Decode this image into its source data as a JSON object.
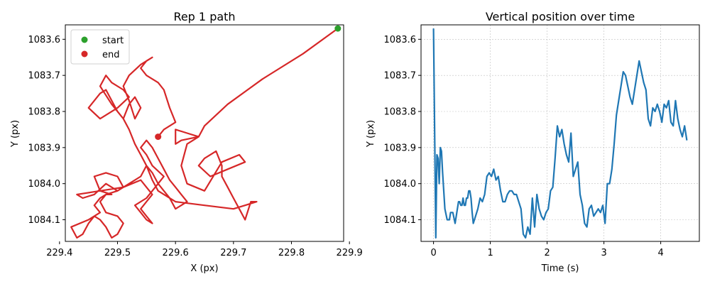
{
  "chart_data": [
    {
      "type": "line",
      "title": "Rep 1 path",
      "xlabel": "X (px)",
      "ylabel": "Y (px)",
      "xlim": [
        229.41,
        229.89
      ],
      "ylim": [
        1083.56,
        1084.16
      ],
      "y_inverted": true,
      "xticks": [
        "229.4",
        "229.5",
        "229.6",
        "229.7",
        "229.8",
        "229.9"
      ],
      "yticks": [
        "1083.6",
        "1083.7",
        "1083.8",
        "1083.9",
        "1084.0",
        "1084.1"
      ],
      "grid": false,
      "legend": {
        "position": "top-left",
        "entries": [
          "start",
          "end"
        ]
      },
      "colors": {
        "path": "#d62728",
        "start": "#2ca02c",
        "end": "#d62728"
      },
      "series": [
        {
          "x": [
            229.88,
            229.82,
            229.75,
            229.69,
            229.65,
            229.64,
            229.61,
            229.6,
            229.6,
            229.62,
            229.64,
            229.63,
            229.62,
            229.61,
            229.62,
            229.65,
            229.68,
            229.71,
            229.72,
            229.69,
            229.66,
            229.64,
            229.65,
            229.67,
            229.68,
            229.68,
            229.69,
            229.7,
            229.71,
            229.72,
            229.73,
            229.74,
            229.72,
            229.7,
            229.65,
            229.6,
            229.57,
            229.56,
            229.55,
            229.54,
            229.52,
            229.5,
            229.48,
            229.47,
            229.48,
            229.5,
            229.51,
            229.5,
            229.49,
            229.48,
            229.47,
            229.46,
            229.45,
            229.44,
            229.43,
            229.42,
            229.45,
            229.47,
            229.46,
            229.47,
            229.48,
            229.49,
            229.47,
            229.46,
            229.48,
            229.5,
            229.51,
            229.5,
            229.49,
            229.48,
            229.46,
            229.44,
            229.43,
            229.47,
            229.51,
            229.54,
            229.55,
            229.56,
            229.55,
            229.54,
            229.55,
            229.56,
            229.55,
            229.54,
            229.53,
            229.55,
            229.56,
            229.57,
            229.58,
            229.56,
            229.55,
            229.54,
            229.55,
            229.56,
            229.57,
            229.58,
            229.59,
            229.6,
            229.61,
            229.62,
            229.61,
            229.6,
            229.59,
            229.58,
            229.57,
            229.56,
            229.55,
            229.54,
            229.53,
            229.52,
            229.51,
            229.5,
            229.49,
            229.48,
            229.47,
            229.45,
            229.47,
            229.5,
            229.52,
            229.51,
            229.49,
            229.48,
            229.47,
            229.49,
            229.51,
            229.52,
            229.53,
            229.54,
            229.53,
            229.52,
            229.51,
            229.52,
            229.54,
            229.56,
            229.55,
            229.54,
            229.55,
            229.57,
            229.58,
            229.59,
            229.6,
            229.58,
            229.57
          ],
          "y": [
            1083.57,
            1083.64,
            1083.71,
            1083.78,
            1083.84,
            1083.87,
            1083.88,
            1083.89,
            1083.85,
            1083.86,
            1083.87,
            1083.88,
            1083.89,
            1083.95,
            1084.0,
            1084.02,
            1083.94,
            1083.92,
            1083.94,
            1083.96,
            1083.98,
            1083.95,
            1083.93,
            1083.91,
            1083.95,
            1083.98,
            1084.01,
            1084.04,
            1084.07,
            1084.1,
            1084.05,
            1084.05,
            1084.06,
            1084.07,
            1084.06,
            1084.05,
            1084.02,
            1083.99,
            1083.95,
            1083.98,
            1084.0,
            1084.02,
            1084.03,
            1084.05,
            1084.08,
            1084.09,
            1084.11,
            1084.14,
            1084.15,
            1084.12,
            1084.1,
            1084.09,
            1084.11,
            1084.14,
            1084.15,
            1084.12,
            1084.1,
            1084.08,
            1084.06,
            1084.04,
            1084.03,
            1084.03,
            1084.02,
            1083.98,
            1083.97,
            1083.98,
            1084.01,
            1084.02,
            1084.01,
            1084.0,
            1084.03,
            1084.04,
            1084.03,
            1084.02,
            1084.01,
            1083.99,
            1084.01,
            1084.03,
            1084.05,
            1084.07,
            1084.09,
            1084.11,
            1084.1,
            1084.08,
            1084.06,
            1084.04,
            1084.02,
            1084.0,
            1083.98,
            1083.95,
            1083.92,
            1083.9,
            1083.88,
            1083.9,
            1083.93,
            1083.96,
            1083.99,
            1084.01,
            1084.03,
            1084.05,
            1084.06,
            1084.07,
            1084.04,
            1084.02,
            1084.0,
            1083.97,
            1083.95,
            1083.92,
            1083.89,
            1083.85,
            1083.82,
            1083.8,
            1083.77,
            1083.74,
            1083.75,
            1083.79,
            1083.82,
            1083.79,
            1083.76,
            1083.74,
            1083.72,
            1083.7,
            1083.73,
            1083.78,
            1083.82,
            1083.78,
            1083.76,
            1083.79,
            1083.82,
            1083.77,
            1083.73,
            1083.7,
            1083.67,
            1083.65,
            1083.66,
            1083.68,
            1083.7,
            1083.72,
            1083.74,
            1083.79,
            1083.83,
            1083.85,
            1083.87
          ]
        }
      ],
      "start": {
        "x": 229.88,
        "y": 1083.57
      },
      "end": {
        "x": 229.57,
        "y": 1083.87
      }
    },
    {
      "type": "line",
      "title": "Vertical position over time",
      "xlabel": "Time (s)",
      "ylabel": "Y (px)",
      "xlim": [
        -0.22,
        4.68
      ],
      "ylim": [
        1083.56,
        1084.16
      ],
      "y_inverted": true,
      "xticks": [
        "0",
        "1",
        "2",
        "3",
        "4"
      ],
      "yticks": [
        "1083.6",
        "1083.7",
        "1083.8",
        "1083.9",
        "1084.0",
        "1084.1"
      ],
      "grid": true,
      "colors": {
        "line": "#1f77b4"
      },
      "series": [
        {
          "x": [
            0.0,
            0.04,
            0.06,
            0.08,
            0.1,
            0.12,
            0.14,
            0.16,
            0.2,
            0.24,
            0.28,
            0.3,
            0.34,
            0.38,
            0.42,
            0.44,
            0.46,
            0.48,
            0.5,
            0.52,
            0.54,
            0.56,
            0.58,
            0.6,
            0.62,
            0.64,
            0.66,
            0.68,
            0.7,
            0.74,
            0.78,
            0.82,
            0.86,
            0.9,
            0.94,
            0.98,
            1.02,
            1.06,
            1.1,
            1.14,
            1.18,
            1.22,
            1.26,
            1.3,
            1.34,
            1.38,
            1.42,
            1.46,
            1.5,
            1.54,
            1.58,
            1.62,
            1.66,
            1.7,
            1.74,
            1.78,
            1.82,
            1.86,
            1.9,
            1.94,
            1.98,
            2.02,
            2.06,
            2.1,
            2.14,
            2.18,
            2.22,
            2.26,
            2.3,
            2.34,
            2.38,
            2.42,
            2.46,
            2.5,
            2.54,
            2.58,
            2.62,
            2.66,
            2.7,
            2.74,
            2.78,
            2.82,
            2.86,
            2.9,
            2.94,
            2.98,
            3.02,
            3.06,
            3.1,
            3.14,
            3.18,
            3.22,
            3.26,
            3.3,
            3.34,
            3.38,
            3.42,
            3.46,
            3.5,
            3.54,
            3.58,
            3.62,
            3.66,
            3.7,
            3.74,
            3.78,
            3.82,
            3.86,
            3.9,
            3.94,
            3.98,
            4.02,
            4.06,
            4.1,
            4.14,
            4.18,
            4.22,
            4.26,
            4.3,
            4.34,
            4.38,
            4.42,
            4.46
          ],
          "y": [
            1083.57,
            1084.15,
            1083.92,
            1083.93,
            1084.0,
            1083.9,
            1083.91,
            1083.97,
            1084.07,
            1084.1,
            1084.1,
            1084.08,
            1084.08,
            1084.11,
            1084.07,
            1084.05,
            1084.05,
            1084.06,
            1084.06,
            1084.04,
            1084.06,
            1084.06,
            1084.04,
            1084.04,
            1084.02,
            1084.02,
            1084.04,
            1084.08,
            1084.11,
            1084.09,
            1084.07,
            1084.04,
            1084.05,
            1084.03,
            1083.98,
            1083.97,
            1083.98,
            1083.96,
            1083.99,
            1083.98,
            1084.02,
            1084.05,
            1084.05,
            1084.03,
            1084.02,
            1084.02,
            1084.03,
            1084.03,
            1084.05,
            1084.07,
            1084.14,
            1084.15,
            1084.12,
            1084.14,
            1084.04,
            1084.12,
            1084.03,
            1084.07,
            1084.09,
            1084.1,
            1084.08,
            1084.07,
            1084.02,
            1084.01,
            1083.93,
            1083.84,
            1083.87,
            1083.85,
            1083.89,
            1083.92,
            1083.94,
            1083.86,
            1083.98,
            1083.96,
            1083.94,
            1084.03,
            1084.06,
            1084.11,
            1084.12,
            1084.07,
            1084.06,
            1084.09,
            1084.08,
            1084.07,
            1084.08,
            1084.06,
            1084.11,
            1084.0,
            1084.0,
            1083.96,
            1083.89,
            1083.81,
            1083.77,
            1083.73,
            1083.69,
            1083.7,
            1083.73,
            1083.76,
            1083.78,
            1083.74,
            1083.7,
            1083.66,
            1083.69,
            1083.72,
            1083.74,
            1083.82,
            1083.84,
            1083.79,
            1083.8,
            1083.78,
            1083.8,
            1083.83,
            1083.78,
            1083.79,
            1083.77,
            1083.83,
            1083.84,
            1083.77,
            1083.82,
            1083.85,
            1083.87,
            1083.84,
            1083.88
          ]
        }
      ]
    }
  ]
}
